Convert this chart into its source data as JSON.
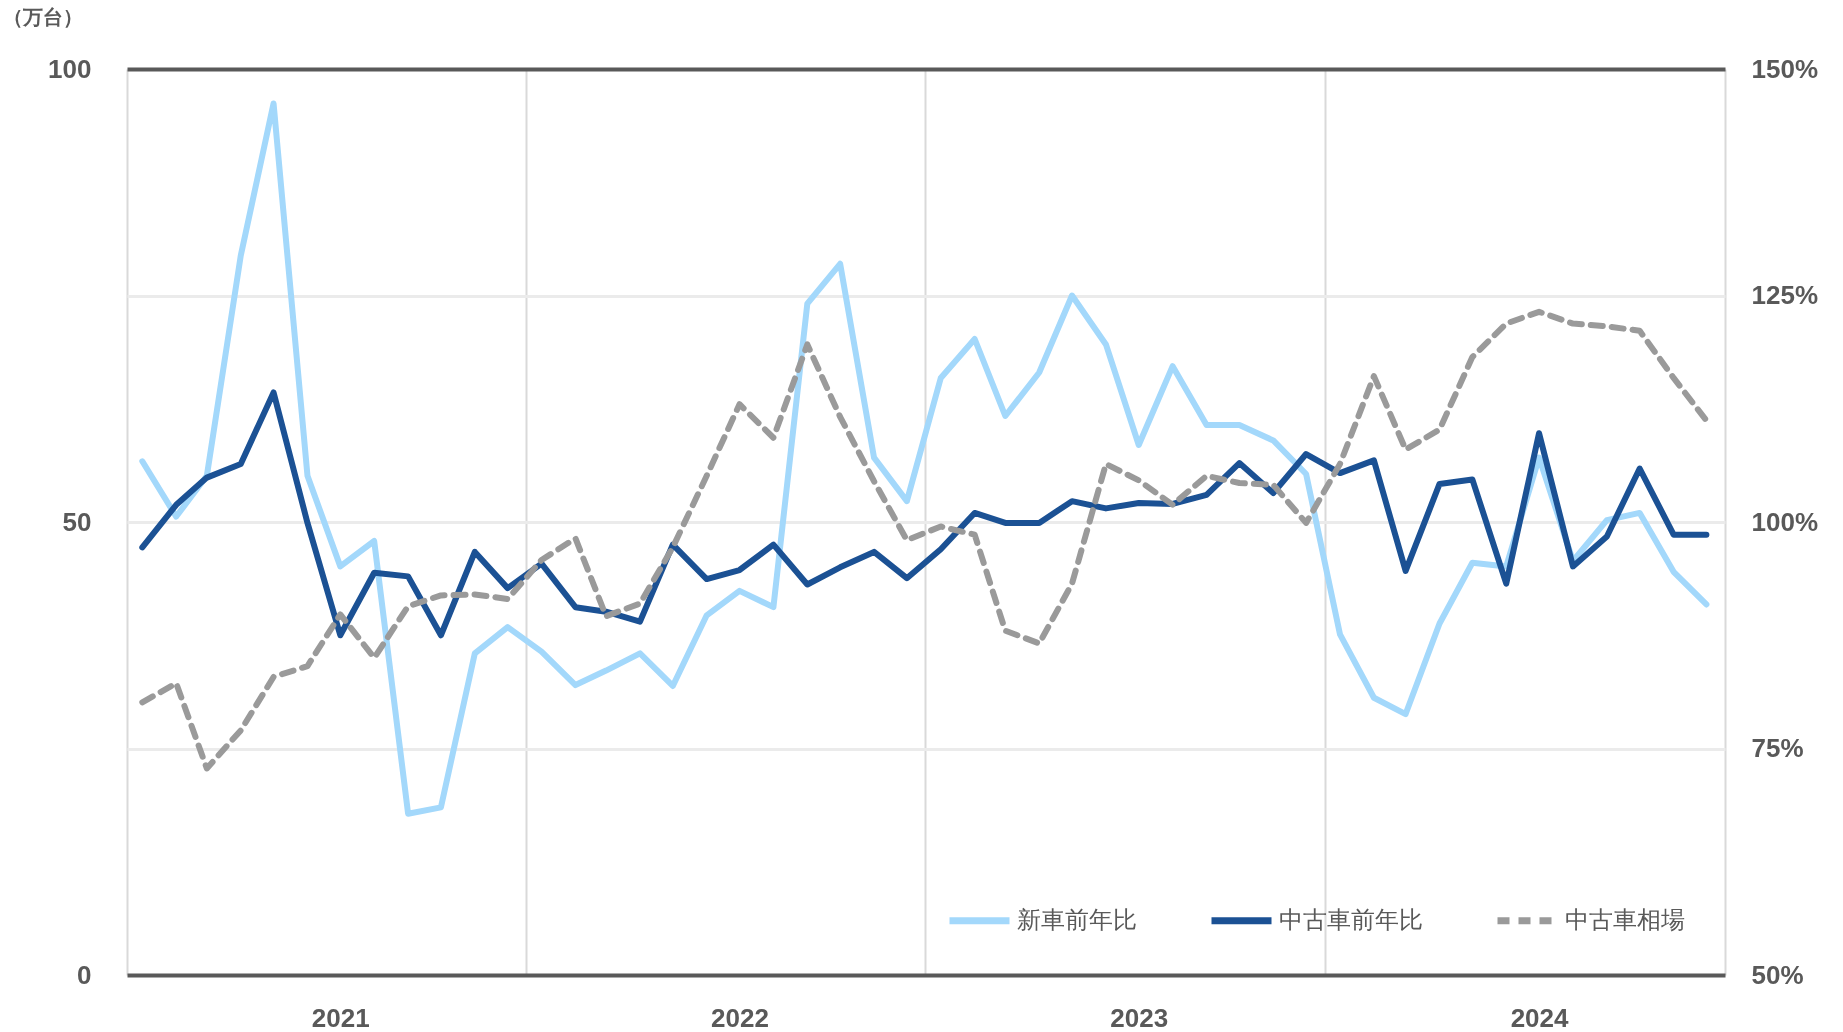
{
  "chart_data": {
    "type": "line",
    "ylabel": "（万台）",
    "x": [
      "2021-01-15",
      "2021-02-15",
      "2021-03-15",
      "2021-04-15",
      "2021-05-15",
      "2021-06-15",
      "2021-07-15",
      "2021-08-15",
      "2021-09-15",
      "2021-10-15",
      "2021-11-15",
      "2021-12-15",
      "2022-01-15",
      "2022-02-15",
      "2022-03-15",
      "2022-04-15",
      "2022-05-15",
      "2022-06-15",
      "2022-07-15",
      "2022-08-15",
      "2022-09-15",
      "2022-10-15",
      "2022-11-15",
      "2022-12-15",
      "2023-01-15",
      "2023-02-15",
      "2023-03-15",
      "2023-04-15",
      "2023-05-15",
      "2023-06-15",
      "2023-07-15",
      "2023-08-15",
      "2023-09-15",
      "2023-10-15",
      "2023-11-15",
      "2023-12-15",
      "2024-01-15",
      "2024-02-15",
      "2024-03-15",
      "2024-04-15",
      "2024-05-15",
      "2024-06-15",
      "2024-07-15",
      "2024-08-15",
      "2024-09-15",
      "2024-10-15",
      "2024-11-15",
      "2024-12-15"
    ],
    "xlim": [
      "2021-01-01",
      "2025-01-01"
    ],
    "xticks": [
      {
        "value": "2021-01-01",
        "label": null
      },
      {
        "value": "2021-07-15",
        "label": "2021"
      },
      {
        "value": "2022-01-01",
        "label": null
      },
      {
        "value": "2022-07-15",
        "label": "2022"
      },
      {
        "value": "2023-01-01",
        "label": null
      },
      {
        "value": "2023-07-15",
        "label": "2023"
      },
      {
        "value": "2024-01-01",
        "label": null
      },
      {
        "value": "2024-07-15",
        "label": "2024"
      },
      {
        "value": "2025-01-01",
        "label": null
      }
    ],
    "ylim": [
      0,
      100
    ],
    "yticks": [
      0,
      {
        "value": 25,
        "label": null
      },
      50,
      {
        "value": 75,
        "label": null
      },
      100
    ],
    "y2lim": [
      50,
      150
    ],
    "y2ticks": [
      {
        "value": 50,
        "label": "50%"
      },
      {
        "value": 75,
        "label": "75%"
      },
      {
        "value": 100,
        "label": "100%"
      },
      {
        "value": 125,
        "label": "125%"
      },
      {
        "value": 150,
        "label": "150%"
      }
    ],
    "grid": true,
    "legend": "bottom right",
    "series": [
      {
        "name": "新車前年比",
        "color": "#a3d8fb",
        "line_style": "solid",
        "values": [
          56.7,
          50.6,
          55.1,
          79.4,
          96.2,
          55.1,
          45.1,
          47.9,
          17.8,
          18.5,
          35.5,
          38.4,
          35.7,
          32.0,
          33.6,
          35.5,
          31.9,
          39.7,
          42.4,
          40.6,
          74.1,
          78.5,
          57.1,
          52.3,
          65.9,
          70.2,
          61.7,
          66.5,
          75.0,
          69.6,
          58.5,
          67.2,
          60.7,
          60.7,
          59.0,
          55.3,
          37.6,
          30.6,
          28.8,
          38.8,
          45.5,
          45.1,
          57.1,
          45.7,
          50.2,
          51.0,
          44.5,
          40.9
        ]
      },
      {
        "name": "中古車前年比",
        "color": "#1b5194",
        "line_style": "solid",
        "values": [
          47.2,
          51.9,
          54.9,
          56.4,
          64.3,
          49.9,
          37.5,
          44.4,
          44.0,
          37.5,
          46.7,
          42.7,
          45.4,
          40.6,
          40.1,
          39.0,
          47.5,
          43.7,
          44.7,
          47.5,
          43.1,
          45.0,
          46.7,
          43.8,
          47.0,
          51.0,
          49.9,
          49.9,
          52.3,
          51.5,
          52.1,
          52.0,
          53.0,
          56.5,
          53.2,
          57.5,
          55.4,
          56.8,
          44.6,
          54.2,
          54.7,
          43.2,
          59.8,
          45.1,
          48.4,
          55.9,
          48.6,
          48.6
        ]
      },
      {
        "name": "中古車相場",
        "color": "#9a9a9a",
        "line_style": "dashed",
        "axis": "y2",
        "values": [
          80.1,
          82.2,
          72.8,
          77.0,
          82.9,
          84.1,
          89.8,
          85.0,
          90.7,
          91.9,
          92.0,
          91.5,
          95.8,
          98.2,
          89.6,
          91.0,
          97.2,
          105.1,
          113.0,
          109.3,
          119.6,
          111.6,
          104.5,
          98.0,
          99.5,
          98.6,
          88.0,
          86.6,
          93.2,
          106.4,
          104.6,
          101.9,
          105.1,
          104.3,
          104.1,
          99.9,
          106.4,
          116.1,
          108.0,
          110.2,
          118.2,
          121.9,
          123.2,
          121.9,
          121.6,
          121.1,
          115.9,
          111.2
        ]
      }
    ]
  }
}
